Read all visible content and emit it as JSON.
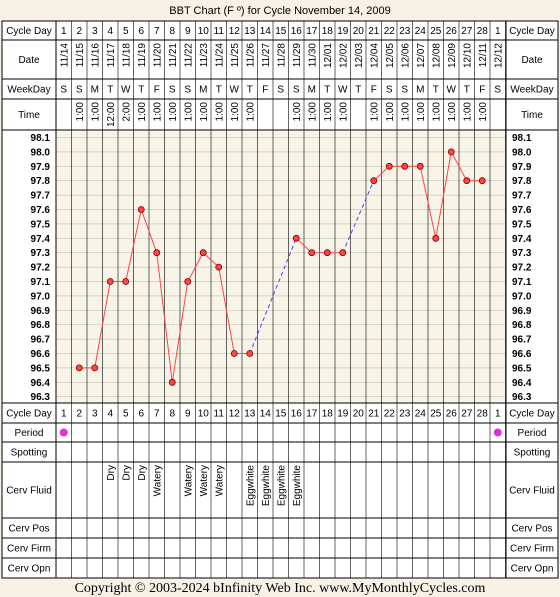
{
  "chart_data": {
    "type": "line",
    "title": "BBT Chart (F º) for Cycle November 14, 2009",
    "row_labels": {
      "cycle_day": "Cycle Day",
      "date": "Date",
      "weekday": "WeekDay",
      "time": "Time",
      "period": "Period",
      "spotting": "Spotting",
      "cerv_fluid": "Cerv Fluid",
      "cerv_pos": "Cerv Pos",
      "cerv_firm": "Cerv Firm",
      "cerv_opn": "Cerv Opn"
    },
    "cycle_days": [
      "1",
      "2",
      "3",
      "4",
      "5",
      "6",
      "7",
      "8",
      "9",
      "10",
      "11",
      "12",
      "13",
      "14",
      "15",
      "16",
      "17",
      "18",
      "19",
      "20",
      "21",
      "22",
      "23",
      "24",
      "25",
      "26",
      "27",
      "28",
      "1"
    ],
    "dates": [
      "11/14",
      "11/15",
      "11/16",
      "11/17",
      "11/18",
      "11/19",
      "11/20",
      "11/21",
      "11/22",
      "11/23",
      "11/24",
      "11/25",
      "11/26",
      "11/27",
      "11/28",
      "11/29",
      "11/30",
      "12/01",
      "12/02",
      "12/03",
      "12/04",
      "12/05",
      "12/06",
      "12/07",
      "12/08",
      "12/09",
      "12/10",
      "12/11",
      "12/12"
    ],
    "weekdays": [
      "S",
      "S",
      "M",
      "T",
      "W",
      "T",
      "F",
      "S",
      "S",
      "M",
      "T",
      "W",
      "T",
      "F",
      "S",
      "S",
      "M",
      "T",
      "W",
      "T",
      "F",
      "S",
      "S",
      "M",
      "T",
      "W",
      "T",
      "F",
      "S"
    ],
    "times": [
      "",
      "1:00",
      "1:00",
      "12:00",
      "2:00",
      "1:00",
      "1:00",
      "1:00",
      "1:00",
      "1:00",
      "1:00",
      "1:00",
      "1:00",
      "",
      "",
      "1:00",
      "1:00",
      "1:00",
      "1:00",
      "",
      "1:00",
      "1:00",
      "1:00",
      "1:00",
      "1:00",
      "1:00",
      "1:00",
      "1:00",
      ""
    ],
    "y_ticks": [
      "98.1",
      "98.0",
      "97.9",
      "97.8",
      "97.7",
      "97.6",
      "97.5",
      "97.4",
      "97.3",
      "97.2",
      "97.1",
      "97.0",
      "96.9",
      "96.8",
      "96.7",
      "96.6",
      "96.5",
      "96.4",
      "96.3"
    ],
    "ylim": [
      96.3,
      98.1
    ],
    "temps": [
      null,
      96.5,
      96.5,
      97.1,
      97.1,
      97.6,
      97.3,
      96.4,
      97.1,
      97.3,
      97.2,
      96.6,
      96.6,
      null,
      null,
      97.4,
      97.3,
      97.3,
      97.3,
      null,
      97.8,
      97.9,
      97.9,
      97.9,
      97.4,
      98.0,
      97.8,
      97.8,
      null
    ],
    "period": [
      true,
      false,
      false,
      false,
      false,
      false,
      false,
      false,
      false,
      false,
      false,
      false,
      false,
      false,
      false,
      false,
      false,
      false,
      false,
      false,
      false,
      false,
      false,
      false,
      false,
      false,
      false,
      false,
      true
    ],
    "cerv_fluid": [
      "",
      "",
      "",
      "Dry",
      "Dry",
      "Dry",
      "Watery",
      "",
      "Watery",
      "Watery",
      "Watery",
      "",
      "Eggwhite",
      "Eggwhite",
      "Eggwhite",
      "Eggwhite",
      "",
      "",
      "",
      "",
      "",
      "",
      "",
      "",
      "",
      "",
      "",
      "",
      ""
    ],
    "colors": {
      "line": "#ff4444",
      "point": "#ff4444",
      "interpolated": "#4444ff",
      "period": "#dd33dd",
      "plot_bg": "#f8f4e8",
      "page_bg": "#f8f1e6"
    },
    "footer": "Copyright © 2003-2024 bInfinity Web Inc.     www.MyMonthlyCycles.com"
  }
}
